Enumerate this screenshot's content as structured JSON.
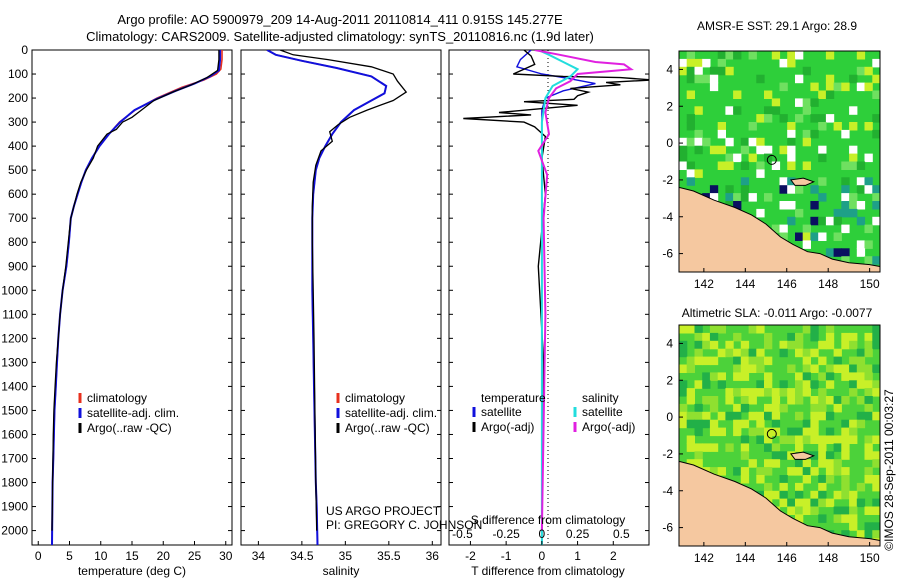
{
  "header": {
    "title_line1": "Argo profile: AO 5900979_209 14-Aug-2011 20110814_411 0.915S 145.277E",
    "title_line2": "Climatology: CARS2009. Satellite-adjusted climatology: synTS_20110816.nc (1.9d later)"
  },
  "credits": {
    "project": "US ARGO PROJECT",
    "pi": "PI: GREGORY C. JOHNSON",
    "stamp": "©IMOS 28-Sep-2011 00:03:27"
  },
  "colors": {
    "climatology": "#e8301e",
    "satellite": "#1010dc",
    "argo": "#000000",
    "satellite_salinity": "#22dddd",
    "argo_adj_salinity": "#e020e0",
    "land": "#f5c8a0",
    "ocean_green": "#2ecf3a",
    "ocean_yellow": "#c8f028",
    "ocean_blue": "#0a1060",
    "ocean_teal": "#1ea088",
    "missing": "#ffffff"
  },
  "depth_axis": {
    "ticks": [
      0,
      100,
      200,
      300,
      400,
      500,
      600,
      700,
      800,
      900,
      1000,
      1100,
      1200,
      1300,
      1400,
      1500,
      1600,
      1700,
      1800,
      1900,
      2000
    ],
    "range": [
      0,
      2060
    ],
    "reversed": true
  },
  "chart_data": [
    {
      "type": "line",
      "panel": "temperature",
      "xlabel": "temperature (deg C)",
      "xlim": [
        -1,
        31
      ],
      "xticks": [
        0,
        5,
        10,
        15,
        20,
        25,
        30
      ],
      "legend": [
        "climatology",
        "satellite-adj. clim.",
        "Argo(..raw -QC)"
      ],
      "legend_position": "lower-center",
      "series": [
        {
          "name": "climatology",
          "x": [
            29.4,
            29.4,
            29.2,
            28.5,
            26.5,
            23.0,
            19.0,
            15.5,
            13.0,
            11.3,
            9.8,
            8.6,
            7.6,
            6.9,
            6.3,
            5.7,
            5.2,
            4.9,
            4.5,
            3.9,
            3.5,
            3.2,
            3.0,
            2.8,
            2.6,
            2.5,
            2.4,
            2.3,
            2.2
          ],
          "y": [
            0,
            40,
            80,
            100,
            125,
            155,
            200,
            250,
            300,
            350,
            400,
            450,
            500,
            550,
            600,
            650,
            700,
            800,
            900,
            1000,
            1100,
            1200,
            1300,
            1400,
            1500,
            1600,
            1700,
            1800,
            2060
          ]
        },
        {
          "name": "satellite-adj. clim.",
          "x": [
            29.1,
            29.1,
            28.9,
            27.5,
            25.0,
            22.0,
            18.8,
            15.4,
            13.1,
            11.3,
            9.8,
            8.6,
            7.6,
            6.9,
            6.3,
            5.7,
            5.2,
            4.9,
            4.5,
            3.9,
            3.5,
            3.2,
            3.0,
            2.8,
            2.6,
            2.5,
            2.4,
            2.3,
            2.2
          ],
          "y": [
            0,
            40,
            85,
            110,
            140,
            170,
            205,
            250,
            300,
            350,
            400,
            450,
            500,
            550,
            600,
            650,
            700,
            800,
            900,
            1000,
            1100,
            1200,
            1300,
            1400,
            1500,
            1600,
            1700,
            1800,
            2060
          ]
        },
        {
          "name": "Argo(..raw -QC)",
          "x": [
            28.9,
            28.9,
            28.7,
            27.0,
            24.5,
            21.5,
            18.5,
            16.5,
            15.0,
            13.5,
            12.5,
            11.0,
            9.5,
            8.8,
            7.7,
            6.8,
            6.2,
            5.7,
            5.2,
            4.8,
            4.4,
            3.9,
            3.5,
            3.2,
            2.9,
            2.7,
            2.5,
            2.4,
            2.3,
            2.2
          ],
          "y": [
            0,
            40,
            85,
            115,
            145,
            175,
            210,
            250,
            280,
            300,
            330,
            350,
            400,
            450,
            500,
            550,
            600,
            650,
            700,
            800,
            900,
            1000,
            1100,
            1200,
            1300,
            1400,
            1500,
            1600,
            1800,
            2000
          ]
        }
      ]
    },
    {
      "type": "line",
      "panel": "salinity",
      "xlabel": "salinity",
      "xlim": [
        33.8,
        36.1
      ],
      "xticks": [
        34,
        34.5,
        35,
        35.5,
        36
      ],
      "legend": [
        "climatology",
        "satellite-adj. clim.",
        "Argo(..raw -QC)"
      ],
      "legend_position": "lower-right",
      "series": [
        {
          "name": "climatology",
          "x": [
            34.1,
            34.2,
            34.5,
            34.9,
            35.3,
            35.47,
            35.45,
            35.3,
            35.1,
            34.95,
            34.85,
            34.77,
            34.7,
            34.66,
            34.63,
            34.62,
            34.62,
            34.62,
            34.62,
            34.63,
            34.64,
            34.65,
            34.66,
            34.67,
            34.68
          ],
          "y": [
            0,
            20,
            45,
            75,
            110,
            150,
            180,
            210,
            250,
            300,
            350,
            400,
            450,
            500,
            600,
            700,
            800,
            900,
            1000,
            1200,
            1400,
            1600,
            1800,
            1900,
            2060
          ]
        },
        {
          "name": "satellite-adj. clim.",
          "x": [
            34.1,
            34.2,
            34.5,
            34.9,
            35.3,
            35.47,
            35.45,
            35.3,
            35.1,
            34.95,
            34.85,
            34.77,
            34.7,
            34.66,
            34.63,
            34.62,
            34.62,
            34.62,
            34.62,
            34.63,
            34.64,
            34.65,
            34.66,
            34.67,
            34.68
          ],
          "y": [
            0,
            20,
            45,
            75,
            110,
            150,
            180,
            210,
            250,
            300,
            350,
            400,
            450,
            500,
            600,
            700,
            800,
            900,
            1000,
            1200,
            1400,
            1600,
            1800,
            1900,
            2060
          ]
        },
        {
          "name": "Argo(..raw -QC)",
          "x": [
            34.25,
            34.4,
            34.8,
            35.3,
            35.55,
            35.6,
            35.7,
            35.55,
            35.25,
            35.05,
            34.92,
            34.82,
            34.85,
            34.72,
            34.66,
            34.63,
            34.62,
            34.62,
            34.63,
            34.64,
            34.65,
            34.66,
            34.67
          ],
          "y": [
            0,
            20,
            40,
            70,
            100,
            130,
            175,
            210,
            250,
            280,
            310,
            340,
            380,
            420,
            480,
            550,
            650,
            800,
            1000,
            1200,
            1500,
            1800,
            2000
          ]
        }
      ]
    },
    {
      "type": "line",
      "panel": "difference",
      "xlabel": "T difference from climatology",
      "xlabel_top": "S difference from climatology",
      "xlim": [
        -2.6,
        3.0
      ],
      "xticks": [
        -2,
        -1,
        0,
        1,
        2
      ],
      "xticks_top_labels": [
        "-0.5",
        "-0.25",
        "0",
        "0.25",
        "0.5"
      ],
      "legend": [
        {
          "group": "temperature",
          "items": [
            "satellite",
            "Argo(-adj)"
          ]
        },
        {
          "group": "salinity",
          "items": [
            "satellite",
            "Argo(-adj)"
          ]
        }
      ],
      "series": [
        {
          "name": "temperature satellite",
          "x": [
            -0.3,
            -0.6,
            -0.7,
            0.0,
            0.8,
            1.5,
            0.6,
            0.1,
            0.0,
            0.0,
            0.0,
            0.0,
            0.0,
            0.0
          ],
          "y": [
            0,
            40,
            70,
            100,
            120,
            140,
            170,
            200,
            250,
            400,
            600,
            1000,
            1500,
            2060
          ]
        },
        {
          "name": "temperature Argo(-adj)",
          "x": [
            -0.5,
            -0.3,
            -0.2,
            -0.8,
            0.6,
            2.2,
            3.1,
            1.8,
            2.2,
            0.8,
            1.3,
            1.0,
            0.9,
            -0.5,
            1.0,
            -1.2,
            -0.3,
            -2.2,
            -0.5,
            -0.2,
            0.1,
            0.0,
            0.1,
            -0.1,
            0.05,
            0.0
          ],
          "y": [
            0,
            25,
            60,
            100,
            110,
            115,
            125,
            135,
            145,
            160,
            175,
            190,
            205,
            215,
            230,
            260,
            270,
            285,
            300,
            320,
            360,
            450,
            600,
            900,
            1300,
            2000
          ]
        },
        {
          "name": "salinity satellite",
          "x": [
            -0.1,
            0.2,
            0.6,
            1.0,
            0.8,
            0.3,
            0.1,
            0.0,
            0.0,
            0.0
          ],
          "y": [
            0,
            20,
            50,
            80,
            110,
            150,
            200,
            300,
            700,
            2060
          ]
        },
        {
          "name": "salinity Argo(-adj)",
          "x": [
            -0.2,
            0.5,
            1.5,
            2.3,
            2.5,
            1.0,
            0.8,
            0.4,
            0.2,
            0.1,
            0.2,
            -0.1,
            0.15,
            0.05,
            0.1,
            0.0
          ],
          "y": [
            0,
            20,
            50,
            60,
            80,
            100,
            130,
            160,
            200,
            260,
            350,
            420,
            520,
            700,
            1100,
            2000
          ]
        }
      ]
    },
    {
      "type": "heatmap",
      "panel": "sst_map",
      "title": "AMSR-E SST: 29.1 Argo: 28.9",
      "xlim": [
        140.8,
        150.5
      ],
      "ylim": [
        -7.0,
        5.0
      ],
      "xticks": [
        142,
        144,
        146,
        148,
        150
      ],
      "yticks": [
        4,
        2,
        0,
        -2,
        -4,
        -6
      ],
      "profile_marker": {
        "lon": 145.277,
        "lat": -0.915
      }
    },
    {
      "type": "heatmap",
      "panel": "sla_map",
      "title": "Altimetric SLA: -0.011 Argo: -0.0077",
      "xlim": [
        140.8,
        150.5
      ],
      "ylim": [
        -7.0,
        5.0
      ],
      "xticks": [
        142,
        144,
        146,
        148,
        150
      ],
      "yticks": [
        4,
        2,
        0,
        -2,
        -4,
        -6
      ],
      "profile_marker": {
        "lon": 145.277,
        "lat": -0.915
      }
    }
  ]
}
